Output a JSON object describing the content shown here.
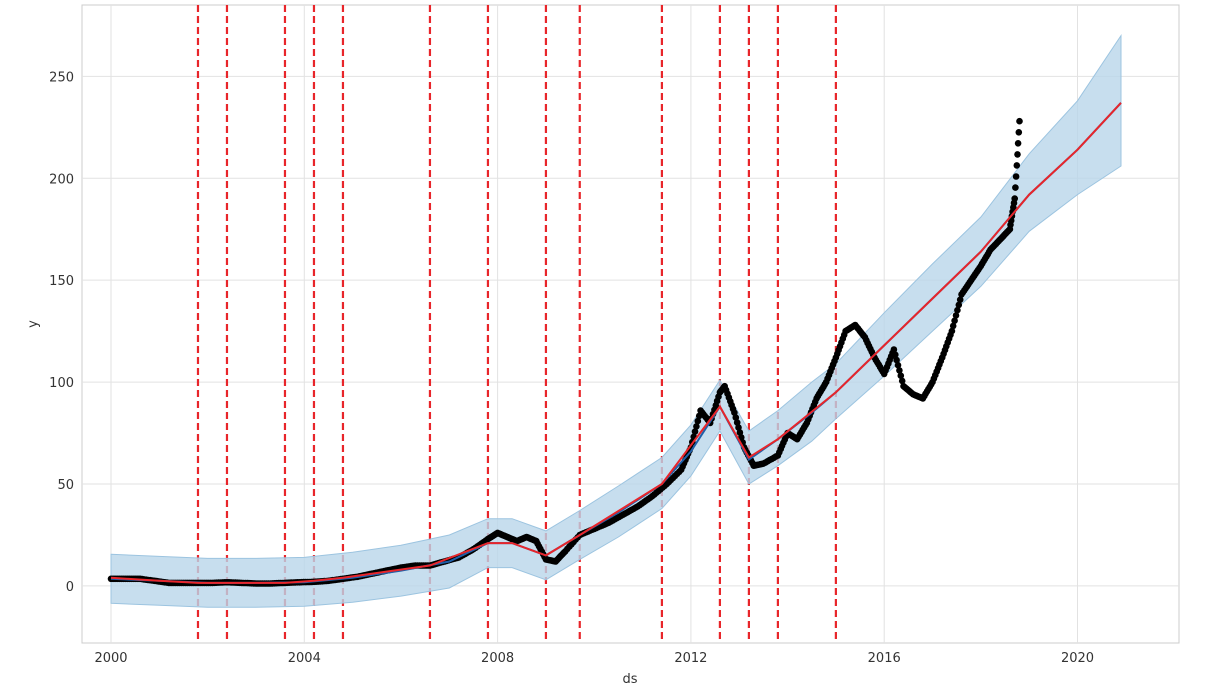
{
  "chart_data": {
    "type": "line",
    "xlabel": "ds",
    "ylabel": "y",
    "xlim": [
      1999.4,
      2022.1
    ],
    "ylim": [
      -28,
      285
    ],
    "grid": true,
    "x_ticks": [
      2000,
      2004,
      2008,
      2012,
      2016,
      2020
    ],
    "x_tick_labels": [
      "2000",
      "2004",
      "2008",
      "2012",
      "2016",
      "2020"
    ],
    "y_ticks": [
      0,
      50,
      100,
      150,
      200,
      250
    ],
    "y_tick_labels": [
      "0",
      "50",
      "100",
      "150",
      "200",
      "250"
    ],
    "changepoints": [
      2001.8,
      2002.4,
      2003.6,
      2004.2,
      2004.8,
      2006.6,
      2007.8,
      2009.0,
      2009.7,
      2011.4,
      2012.6,
      2013.2,
      2013.8,
      2015.0
    ],
    "series": [
      {
        "kind": "trend",
        "color": "#e8252a",
        "x": [
          2000.0,
          2001.0,
          2001.8,
          2002.4,
          2003.6,
          2004.2,
          2004.8,
          2006.6,
          2007.8,
          2008.3,
          2009.0,
          2009.7,
          2011.4,
          2012.6,
          2013.2,
          2013.8,
          2015.0,
          2016.0,
          2017.0,
          2018.0,
          2019.0,
          2020.0,
          2020.9
        ],
        "y": [
          4,
          2.5,
          1.5,
          1.5,
          1.5,
          2.5,
          4,
          10,
          21,
          21,
          15,
          25,
          50,
          88,
          63,
          72,
          95,
          118,
          141,
          164,
          192,
          214,
          237
        ]
      },
      {
        "kind": "forecast",
        "color": "#1f5fa8",
        "x": [
          2000.0,
          2001.0,
          2002.0,
          2003.0,
          2004.0,
          2005.0,
          2006.0,
          2007.0,
          2007.8,
          2008.3,
          2009.0,
          2009.7,
          2010.5,
          2011.4,
          2012.0,
          2012.6,
          2013.2,
          2013.8,
          2014.5,
          2015.0,
          2016.0,
          2017.0,
          2018.0,
          2019.0,
          2020.0,
          2020.9
        ],
        "y": [
          3.5,
          2.5,
          1.5,
          1.5,
          1.8,
          4,
          7.5,
          12,
          21,
          21,
          15,
          25,
          36,
          50,
          66,
          88,
          62,
          72,
          85,
          95,
          118,
          141,
          164,
          192,
          214,
          237
        ],
        "upper": [
          15.5,
          14.5,
          13.5,
          13.5,
          14,
          16.5,
          20,
          25,
          33,
          33,
          27,
          37,
          49,
          63,
          79,
          101,
          76,
          86,
          100,
          109,
          134,
          158,
          181,
          212,
          238,
          270
        ],
        "lower": [
          -8.5,
          -9.5,
          -10.5,
          -10.5,
          -10,
          -8,
          -5,
          -1,
          9,
          9,
          3,
          13,
          24,
          38,
          54,
          76,
          50,
          59,
          71,
          82,
          103,
          125,
          147,
          174,
          192,
          206
        ]
      },
      {
        "kind": "observed",
        "color": "#000000",
        "x": [
          2000.0,
          2000.3,
          2000.6,
          2000.9,
          2001.2,
          2001.5,
          2001.8,
          2002.1,
          2002.4,
          2002.7,
          2003.0,
          2003.3,
          2003.6,
          2003.9,
          2004.2,
          2004.5,
          2004.8,
          2005.1,
          2005.4,
          2005.7,
          2006.0,
          2006.3,
          2006.6,
          2006.9,
          2007.2,
          2007.5,
          2007.8,
          2008.0,
          2008.2,
          2008.4,
          2008.6,
          2008.8,
          2009.0,
          2009.2,
          2009.4,
          2009.7,
          2010.0,
          2010.3,
          2010.6,
          2010.9,
          2011.2,
          2011.5,
          2011.8,
          2012.0,
          2012.2,
          2012.4,
          2012.6,
          2012.7,
          2012.9,
          2013.1,
          2013.3,
          2013.5,
          2013.8,
          2014.0,
          2014.2,
          2014.4,
          2014.6,
          2014.8,
          2015.0,
          2015.2,
          2015.4,
          2015.6,
          2015.8,
          2016.0,
          2016.2,
          2016.4,
          2016.6,
          2016.8,
          2017.0,
          2017.2,
          2017.4,
          2017.6,
          2017.8,
          2018.0,
          2018.2,
          2018.4,
          2018.6,
          2018.7,
          2018.8
        ],
        "y": [
          3.5,
          3.5,
          3.5,
          2.5,
          1.5,
          1.5,
          1.5,
          1.5,
          1.8,
          1.5,
          1.2,
          1.2,
          1.5,
          1.8,
          2,
          2.5,
          3.5,
          4.5,
          6,
          7.5,
          9,
          10,
          10,
          12,
          14,
          18,
          23,
          26,
          24,
          22,
          24,
          22,
          13,
          12,
          17,
          25,
          28,
          31,
          35,
          39,
          44,
          50,
          57,
          68,
          86,
          80,
          95,
          98,
          85,
          68,
          59,
          60,
          64,
          75,
          72,
          80,
          92,
          100,
          112,
          125,
          128,
          122,
          112,
          104,
          116,
          98,
          94,
          92,
          100,
          112,
          125,
          143,
          150,
          157,
          165,
          170,
          175,
          190,
          228
        ]
      }
    ]
  }
}
